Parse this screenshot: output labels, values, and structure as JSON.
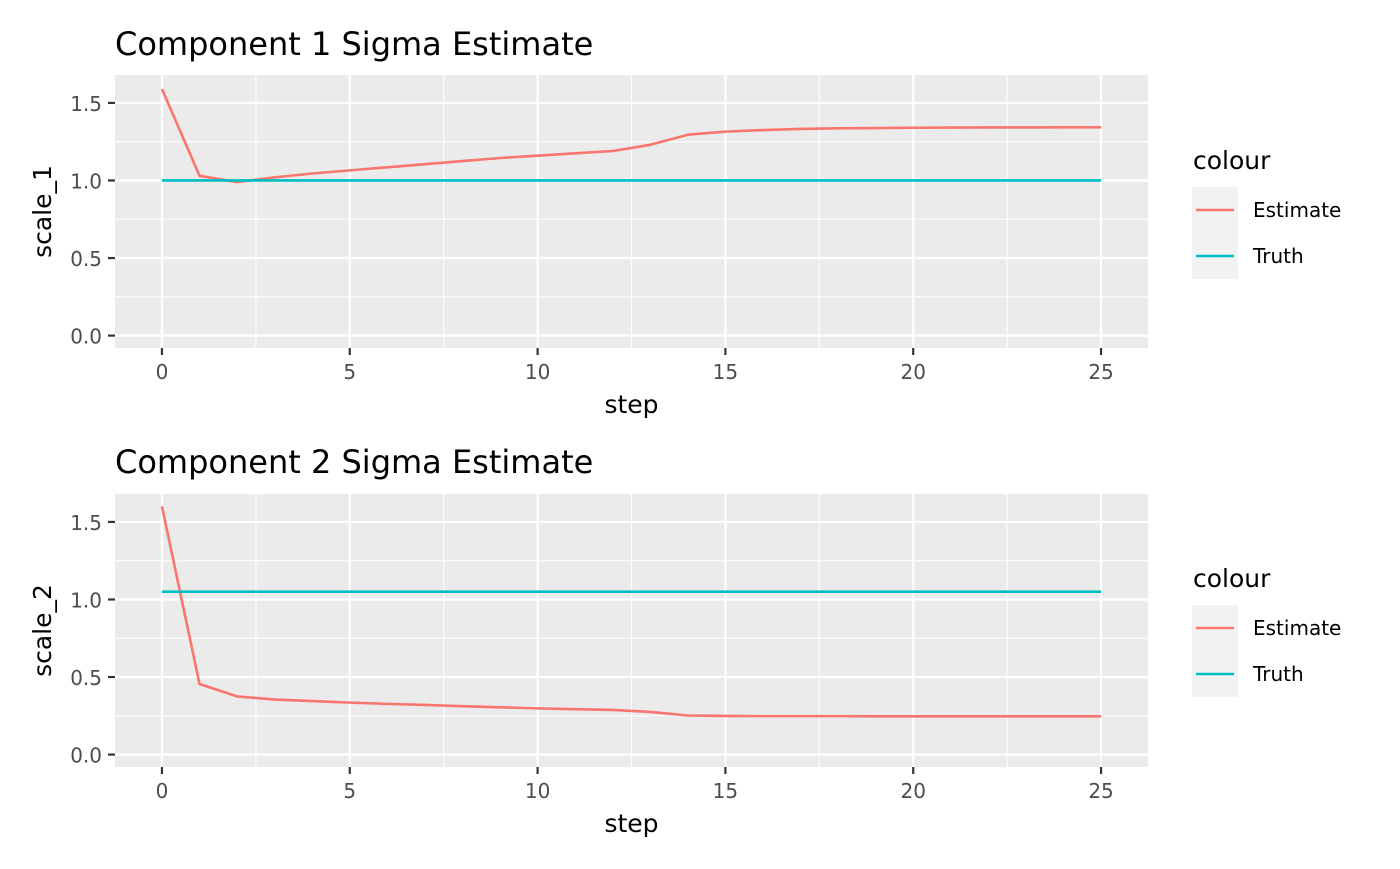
{
  "chart_data": [
    {
      "type": "line",
      "title": "Component 1 Sigma Estimate",
      "xlabel": "step",
      "ylabel": "scale_1",
      "xlim": [
        -1.25,
        26.25
      ],
      "ylim": [
        -0.08,
        1.68
      ],
      "xticks": [
        0,
        5,
        10,
        15,
        20,
        25
      ],
      "yticks": [
        0.0,
        0.5,
        1.0,
        1.5
      ],
      "ytick_labels": [
        "0.0",
        "0.5",
        "1.0",
        "1.5"
      ],
      "grid": true,
      "legend": {
        "title": "colour",
        "position": "right"
      },
      "series": [
        {
          "name": "Estimate",
          "color": "#F8766D",
          "x": [
            0,
            1,
            2,
            3,
            4,
            5,
            6,
            7,
            8,
            9,
            10,
            11,
            12,
            13,
            14,
            15,
            16,
            17,
            18,
            19,
            20,
            21,
            22,
            23,
            24,
            25
          ],
          "y": [
            1.59,
            1.03,
            0.99,
            1.02,
            1.045,
            1.065,
            1.085,
            1.105,
            1.125,
            1.145,
            1.16,
            1.175,
            1.19,
            1.23,
            1.295,
            1.315,
            1.325,
            1.332,
            1.336,
            1.338,
            1.34,
            1.341,
            1.342,
            1.342,
            1.343,
            1.343
          ]
        },
        {
          "name": "Truth",
          "color": "#00BFC4",
          "x": [
            0,
            25
          ],
          "y": [
            1.0,
            1.0
          ]
        }
      ]
    },
    {
      "type": "line",
      "title": "Component 2 Sigma Estimate",
      "xlabel": "step",
      "ylabel": "scale_2",
      "xlim": [
        -1.25,
        26.25
      ],
      "ylim": [
        -0.08,
        1.68
      ],
      "xticks": [
        0,
        5,
        10,
        15,
        20,
        25
      ],
      "yticks": [
        0.0,
        0.5,
        1.0,
        1.5
      ],
      "ytick_labels": [
        "0.0",
        "0.5",
        "1.0",
        "1.5"
      ],
      "grid": true,
      "legend": {
        "title": "colour",
        "position": "right"
      },
      "series": [
        {
          "name": "Estimate",
          "color": "#F8766D",
          "x": [
            0,
            1,
            2,
            3,
            4,
            5,
            6,
            7,
            8,
            9,
            10,
            11,
            12,
            13,
            14,
            15,
            16,
            17,
            18,
            19,
            20,
            21,
            22,
            23,
            24,
            25
          ],
          "y": [
            1.6,
            0.455,
            0.375,
            0.355,
            0.345,
            0.335,
            0.327,
            0.32,
            0.312,
            0.305,
            0.298,
            0.293,
            0.288,
            0.275,
            0.252,
            0.249,
            0.248,
            0.248,
            0.248,
            0.247,
            0.247,
            0.247,
            0.247,
            0.247,
            0.247,
            0.247
          ]
        },
        {
          "name": "Truth",
          "color": "#00BFC4",
          "x": [
            0,
            25
          ],
          "y": [
            1.05,
            1.05
          ]
        }
      ]
    }
  ]
}
